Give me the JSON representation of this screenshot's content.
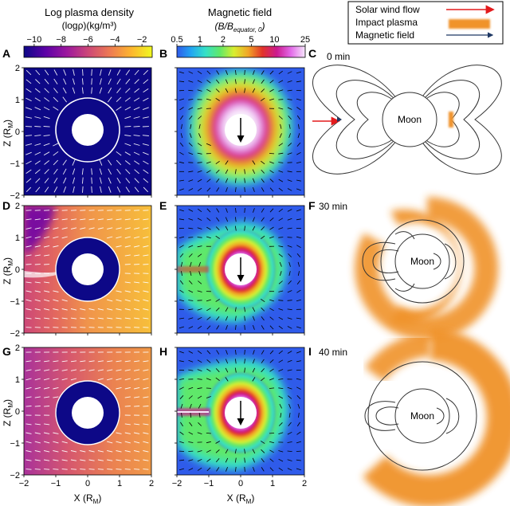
{
  "colorbars": {
    "density": {
      "title": "Log plasma density",
      "unit": "(logρ)(kg/m³)",
      "ticks": [
        "−10",
        "−8",
        "−6",
        "−4",
        "−2"
      ],
      "colors": [
        "#0d0887",
        "#5c01a6",
        "#9c179e",
        "#cc4778",
        "#ed7953",
        "#fdb42f",
        "#f0f921"
      ]
    },
    "field": {
      "title": "Magnetic field",
      "unit_main": "(B/B",
      "unit_sub": "equator, 0",
      "unit_close": ")",
      "ticks": [
        "0.5",
        "1",
        "2",
        "5",
        "10",
        "25"
      ],
      "colors": [
        "#2f5bea",
        "#22a6f2",
        "#35e0c8",
        "#5fe86a",
        "#d8ee2f",
        "#f1a526",
        "#e2332a",
        "#cc1a8f",
        "#e36be9",
        "#f6e6fb"
      ]
    }
  },
  "legend": {
    "items": [
      {
        "label": "Solar wind flow",
        "color": "#e31a1c"
      },
      {
        "label": "Impact plasma",
        "color": "#f0932b"
      },
      {
        "label": "Magnetic field",
        "color": "#1f3864"
      }
    ]
  },
  "panel_letters": [
    "A",
    "B",
    "C",
    "D",
    "E",
    "F",
    "G",
    "H",
    "I"
  ],
  "times": [
    "0 min",
    "30 min",
    "40 min"
  ],
  "moon_label": "Moon",
  "axes": {
    "ylabel": "Z (R",
    "ylabel_sub": "M",
    "ylabel_close": ")",
    "xlabel": "X (R",
    "xlabel_sub": "M",
    "xlabel_close": ")",
    "ticks": [
      "−2",
      "−1",
      "0",
      "1",
      "2"
    ]
  }
}
